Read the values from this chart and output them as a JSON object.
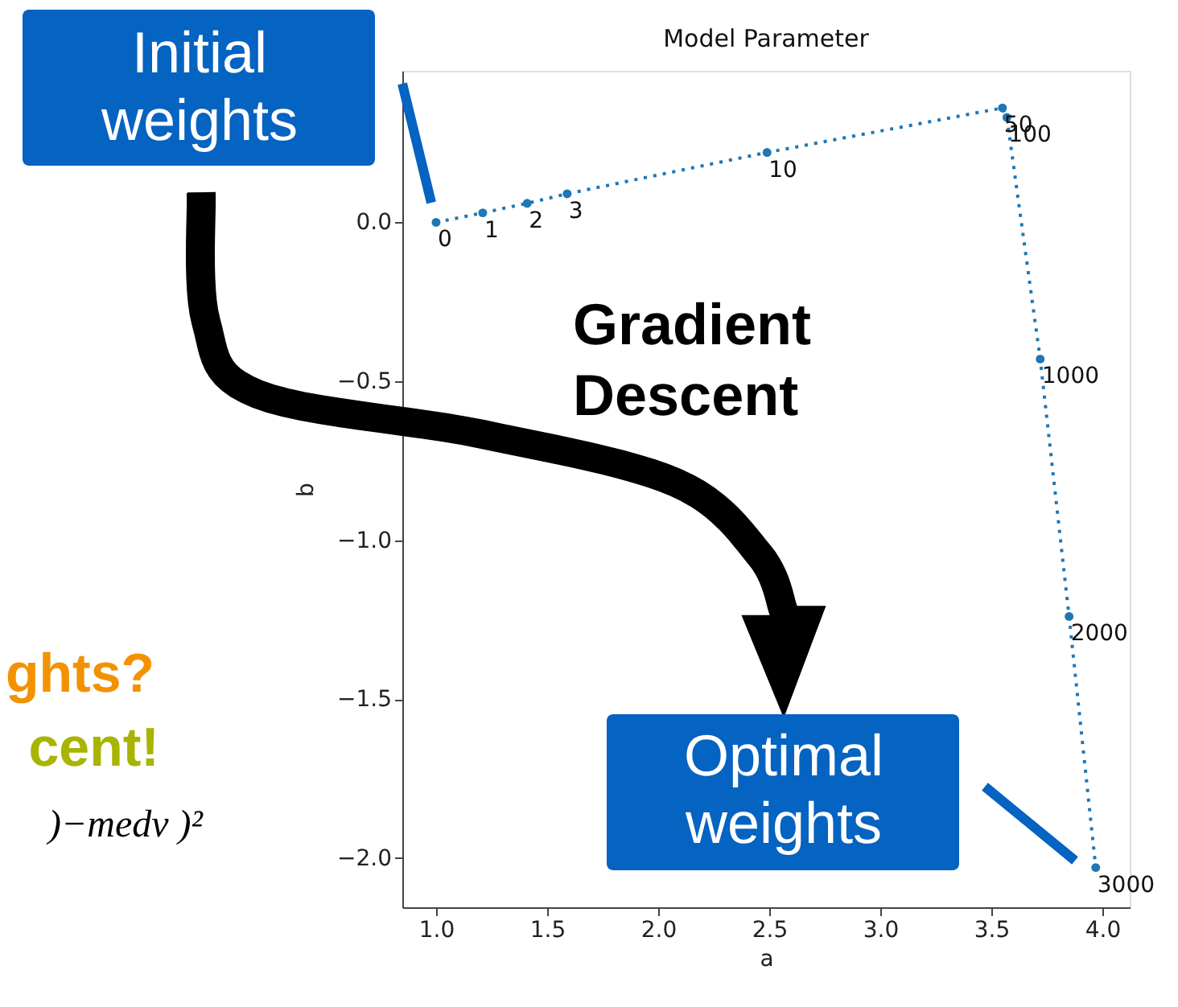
{
  "chart_data": {
    "type": "line",
    "title": "Model Parameter",
    "xlabel": "a",
    "ylabel": "b",
    "x": [
      1.0,
      1.21,
      1.41,
      1.59,
      2.49,
      3.55,
      3.57,
      3.72,
      3.85,
      3.97
    ],
    "series": [
      {
        "color": "#1f77b4",
        "values": [
          0.0,
          0.03,
          0.06,
          0.09,
          0.22,
          0.36,
          0.33,
          -0.43,
          -1.24,
          -2.03
        ]
      }
    ],
    "marker": "circle",
    "line_style": "dotted",
    "grid": false,
    "xlim": [
      0.848,
      4.123
    ],
    "ylim": [
      -2.155,
      0.477
    ],
    "xticks": [
      {
        "value": 1.0,
        "label": "1.0"
      },
      {
        "value": 1.5,
        "label": "1.5"
      },
      {
        "value": 2.0,
        "label": "2.0"
      },
      {
        "value": 2.5,
        "label": "2.5"
      },
      {
        "value": 3.0,
        "label": "3.0"
      },
      {
        "value": 3.5,
        "label": "3.5"
      },
      {
        "value": 4.0,
        "label": "4.0"
      }
    ],
    "yticks": [
      {
        "value": 0.0,
        "label": "0.0"
      },
      {
        "value": -0.5,
        "label": "−0.5"
      },
      {
        "value": -1.0,
        "label": "−1.0"
      },
      {
        "value": -1.5,
        "label": "−1.5"
      },
      {
        "value": -2.0,
        "label": "−2.0"
      }
    ],
    "annotations": [
      "Initial weights",
      "Optimal weights",
      "Gradient Descent",
      "ghts?",
      "cent!",
      ")−medv )²",
      {
        "text": "0",
        "x": 1.0,
        "y": 0.0
      },
      {
        "text": "1",
        "x": 1.21,
        "y": 0.03
      },
      {
        "text": "2",
        "x": 1.41,
        "y": 0.06
      },
      {
        "text": "3",
        "x": 1.59,
        "y": 0.09
      },
      {
        "text": "10",
        "x": 2.49,
        "y": 0.22
      },
      {
        "text": "50",
        "x": 3.55,
        "y": 0.36
      },
      {
        "text": "100",
        "x": 3.57,
        "y": 0.33
      },
      {
        "text": "1000",
        "x": 3.72,
        "y": -0.43
      },
      {
        "text": "2000",
        "x": 3.85,
        "y": -1.24
      },
      {
        "text": "3000",
        "x": 3.97,
        "y": -2.03
      }
    ]
  }
}
